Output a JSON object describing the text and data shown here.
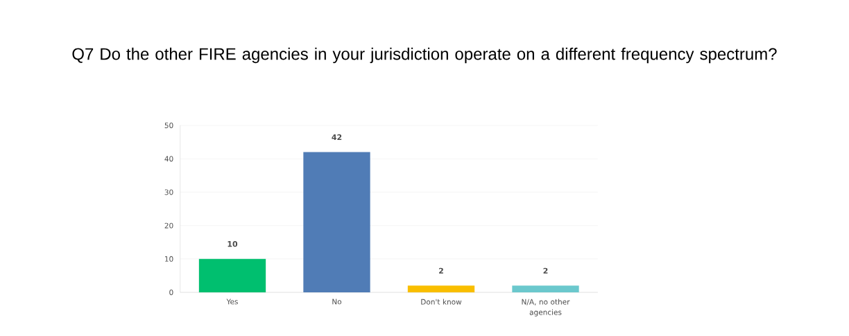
{
  "chart_data": {
    "type": "bar",
    "title": "Q7 Do the other FIRE agencies in your jurisdiction operate on a different frequency spectrum?",
    "categories": [
      "Yes",
      "No",
      "Don't know",
      "N/A, no other agencies"
    ],
    "values": [
      10,
      42,
      2,
      2
    ],
    "colors": [
      "#00bf6f",
      "#507cb6",
      "#f9be00",
      "#6bc8cd"
    ],
    "ylim": [
      0,
      50
    ],
    "yticks": [
      0,
      10,
      20,
      30,
      40,
      50
    ],
    "grid": "y",
    "data_labels": true
  }
}
